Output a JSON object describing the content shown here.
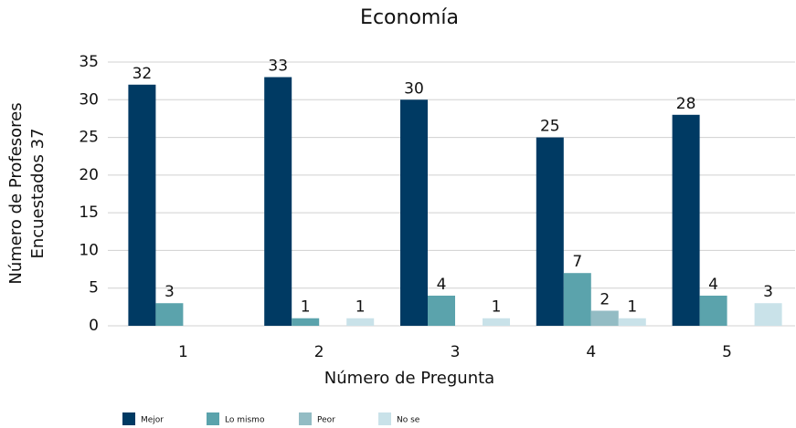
{
  "chart_data": {
    "type": "bar",
    "title": "Economía",
    "x_label": "Número de Pregunta",
    "y_label": [
      "Número de Profesores",
      "Encuestados 37"
    ],
    "categories": [
      "1",
      "2",
      "3",
      "4",
      "5"
    ],
    "series": [
      {
        "name": "Mejor",
        "color": "#003a63",
        "values": [
          32,
          33,
          30,
          25,
          28
        ]
      },
      {
        "name": "Lo mismo",
        "color": "#5ba3ac",
        "values": [
          3,
          1,
          4,
          7,
          4
        ]
      },
      {
        "name": "Peor",
        "color": "#93bcc4",
        "values": [
          null,
          null,
          null,
          2,
          null
        ]
      },
      {
        "name": "No se",
        "color": "#c9e2e9",
        "values": [
          null,
          1,
          1,
          1,
          3
        ]
      }
    ],
    "ylim": [
      0,
      35
    ],
    "yticks": [
      0,
      5,
      10,
      15,
      20,
      25,
      30,
      35
    ],
    "grid": true,
    "legend": "bottom"
  }
}
